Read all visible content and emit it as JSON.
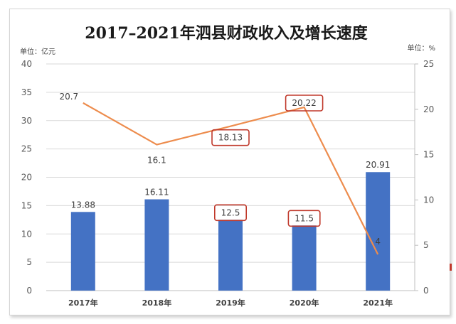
{
  "chart_data": {
    "type": "bar+line",
    "title": "2017–2021年泗县财政收入及增长速度",
    "categories": [
      "2017年",
      "2018年",
      "2019年",
      "2020年",
      "2021年"
    ],
    "y_left": {
      "unit_label": "单位：亿元",
      "ticks": [
        "0",
        "5",
        "10",
        "15",
        "20",
        "25",
        "30",
        "35",
        "40"
      ],
      "ylim": [
        0,
        40
      ]
    },
    "y_right": {
      "unit_label": "单位：%",
      "ticks": [
        "0",
        "5",
        "10",
        "15",
        "20",
        "25"
      ],
      "ylim": [
        0,
        25
      ]
    },
    "series": [
      {
        "type": "bar",
        "axis": "left",
        "values": [
          13.88,
          16.11,
          12.5,
          11.5,
          20.91
        ],
        "labels": [
          "13.88",
          "16.11",
          "12.5",
          "11.5",
          "20.91"
        ]
      },
      {
        "type": "line",
        "axis": "right",
        "values": [
          20.7,
          16.1,
          18.13,
          20.22,
          4
        ],
        "labels": [
          "20.7",
          "16.1",
          "18.13",
          "20.22",
          "4"
        ]
      }
    ],
    "highlighted_labels": [
      "12.5",
      "11.5",
      "18.13",
      "20.22"
    ],
    "grid": "horizontal",
    "colors": {
      "bar": "#4472c4",
      "line": "#ed8c4d",
      "highlight": "#c0392b"
    }
  }
}
